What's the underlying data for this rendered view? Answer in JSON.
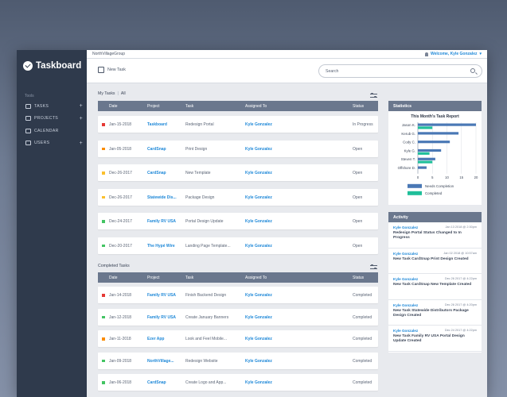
{
  "app": {
    "name": "Taskboard"
  },
  "sidebar": {
    "section_label": "Tools",
    "items": [
      {
        "label": "TASKS",
        "has_add": true
      },
      {
        "label": "PROJECTS",
        "has_add": true
      },
      {
        "label": "CALENDAR",
        "has_add": false
      },
      {
        "label": "USERS",
        "has_add": true
      }
    ]
  },
  "topbar": {
    "org": "NorthVillageGroup",
    "welcome": "Welcome, Kyle Gonzalez"
  },
  "toolbar": {
    "new_task_label": "New Task",
    "search_placeholder": "Search"
  },
  "my_tasks": {
    "title": "My Tasks",
    "filter": "All",
    "columns": [
      "Date",
      "Project",
      "Task",
      "Assigned To",
      "Status"
    ],
    "rows": [
      {
        "priority_color": "#e53935",
        "date": "Jan-15-2018",
        "project": "Taskboard",
        "task": "Redesign Portal",
        "assigned": "Kyle Gonzalez",
        "status": "In Progress"
      },
      {
        "priority_color": "#fb8c00",
        "date": "Jan-05-2018",
        "project": "CardSnap",
        "task": "Print Design",
        "assigned": "Kyle Gonzalez",
        "status": "Open"
      },
      {
        "priority_color": "#fbc02d",
        "date": "Dec-26-2017",
        "project": "CardSnap",
        "task": "New Template",
        "assigned": "Kyle Gonzalez",
        "status": "Open"
      },
      {
        "priority_color": "#fbc02d",
        "date": "Dec-26-2017",
        "project": "Statewide Dis...",
        "task": "Package Design",
        "assigned": "Kyle Gonzalez",
        "status": "Open"
      },
      {
        "priority_color": "#43c463",
        "date": "Dec-24-2017",
        "project": "Family RV USA",
        "task": "Portal Design Update",
        "assigned": "Kyle Gonzalez",
        "status": "Open"
      },
      {
        "priority_color": "#43c463",
        "date": "Dec-20-2017",
        "project": "The Hypé Wire",
        "task": "Landing Page Template...",
        "assigned": "Kyle Gonzalez",
        "status": "Open"
      }
    ]
  },
  "completed_tasks": {
    "title": "Completed Tasks",
    "columns": [
      "Date",
      "Project",
      "Task",
      "Assigned To",
      "Status"
    ],
    "rows": [
      {
        "priority_color": "#e53935",
        "date": "Jan-14-2018",
        "project": "Family RV USA",
        "task": "Finish Backend Design",
        "assigned": "Kyle Gonzalez",
        "status": "Completed"
      },
      {
        "priority_color": "#43c463",
        "date": "Jan-12-2018",
        "project": "Family RV USA",
        "task": "Create January Banners",
        "assigned": "Kyle Gonzalez",
        "status": "Completed"
      },
      {
        "priority_color": "#fb8c00",
        "date": "Jan-11-2018",
        "project": "Ezer App",
        "task": "Look and Feel Mobile...",
        "assigned": "Kyle Gonzalez",
        "status": "Completed"
      },
      {
        "priority_color": "#43c463",
        "date": "Jan-09-2018",
        "project": "NorthVillage...",
        "task": "Redesign Website",
        "assigned": "Kyle Gonzalez",
        "status": "Completed"
      },
      {
        "priority_color": "#43c463",
        "date": "Jan-06-2018",
        "project": "CardSnap",
        "task": "Create Logo and App...",
        "assigned": "Kyle Gonzalez",
        "status": "Completed"
      }
    ]
  },
  "statistics": {
    "title": "Statistics"
  },
  "chart_data": {
    "type": "bar",
    "title": "This Month's Task Report",
    "orientation": "horizontal",
    "categories": [
      "Jason K.",
      "Kerub G.",
      "Cody C.",
      "Kyle G.",
      "Steven T.",
      "Offshore D."
    ],
    "series": [
      {
        "name": "Needs Completion",
        "color": "#4a78b5",
        "values": [
          20,
          14,
          11,
          8,
          6,
          3
        ]
      },
      {
        "name": "Completed",
        "color": "#1fbf9a",
        "values": [
          5,
          0,
          0,
          4,
          5,
          0
        ]
      }
    ],
    "xticks": [
      0,
      5,
      10,
      15,
      20
    ],
    "xlim": [
      0,
      20
    ],
    "legend_position": "bottom-left"
  },
  "activity": {
    "title": "Activity",
    "items": [
      {
        "user": "Kyle Gonzalez",
        "time": "Jan 13 2018 @ 2:30pm",
        "message": "Redesign Portal Status Changed to In Progress"
      },
      {
        "user": "Kyle Gonzalez",
        "time": "Jan 02 2018 @ 10:57am",
        "message": "New Task CardSnap Print Design Created"
      },
      {
        "user": "Kyle Gonzalez",
        "time": "Dec 26 2017 @ 4:22pm",
        "message": "New Task CardSnap New Template Created"
      },
      {
        "user": "Kyle Gonzalez",
        "time": "Dec 26 2017 @ 4:20pm",
        "message": "New Task Statewide Distributors Package Design Created"
      },
      {
        "user": "Kyle Gonzalez",
        "time": "Dec 24 2017 @ 4:22pm",
        "message": "New Task Family RV USA Portal Design Update Created"
      }
    ]
  }
}
